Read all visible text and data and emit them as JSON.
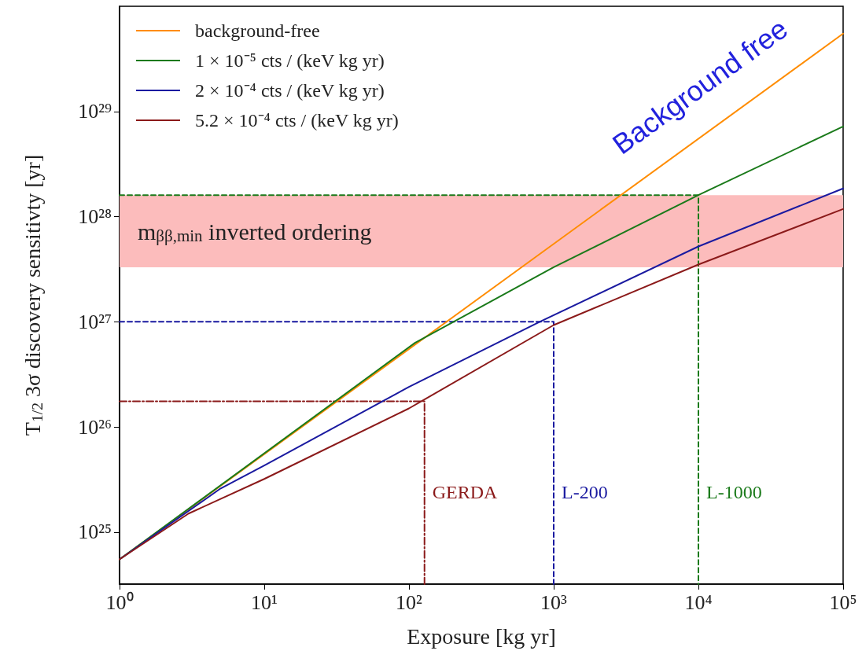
{
  "chart_data": {
    "type": "line",
    "xlabel": "Exposure [kg yr]",
    "ylabel": "T$_{1/2}$ 3σ discovery sensitivty [yr]",
    "log": "xy",
    "legend": "top left",
    "marker": "none",
    "xlim": [
      1,
      100000
    ],
    "ylim": [
      3.2e+24,
      1e+30
    ],
    "xticks": [
      {
        "value": 1,
        "label": "10⁰"
      },
      {
        "value": 10,
        "label": "10¹"
      },
      {
        "value": 100,
        "label": "10²"
      },
      {
        "value": 1000,
        "label": "10³"
      },
      {
        "value": 10000,
        "label": "10⁴"
      },
      {
        "value": 100000,
        "label": "10⁵"
      }
    ],
    "yticks": [
      {
        "value": 1e+25,
        "label": "10²⁵"
      },
      {
        "value": 1e+26,
        "label": "10²⁶"
      },
      {
        "value": 1e+27,
        "label": "10²⁷"
      },
      {
        "value": 1e+28,
        "label": "10²⁸"
      },
      {
        "value": 1e+29,
        "label": "10²⁹"
      }
    ],
    "series": [
      {
        "name": "background-free",
        "color": "#ff8c00",
        "x": [
          1,
          100000
        ],
        "values": [
          5.5e+24,
          5.5e+29
        ]
      },
      {
        "name": "1 × 10⁻⁵ cts / (keV kg yr)",
        "color": "#1a7a1a",
        "x": [
          1,
          110,
          1000,
          10000,
          100000
        ],
        "values": [
          5.5e+24,
          6.3e+26,
          3.3e+27,
          1.6e+28,
          7.2e+28
        ]
      },
      {
        "name": "2 × 10⁻⁴ cts / (keV kg yr)",
        "color": "#1a1aa0",
        "x": [
          1,
          5,
          10,
          100,
          800,
          10000,
          100000
        ],
        "values": [
          5.5e+24,
          2.6e+25,
          4.3e+25,
          2.4e+26,
          1e+27,
          5.2e+27,
          1.85e+28
        ]
      },
      {
        "name": "5.2 × 10⁻⁴ cts / (keV kg yr)",
        "color": "#8b1a1a",
        "x": [
          1,
          3,
          10,
          100,
          1000,
          10000,
          100000
        ],
        "values": [
          5.5e+24,
          1.5e+25,
          3.2e+25,
          1.5e+26,
          9.3e+26,
          3.5e+27,
          1.18e+28
        ]
      },
      {
        "color": "#8b1a1a",
        "line_style": "dashdot",
        "x": [
          1,
          128,
          128
        ],
        "values": [
          1.75e+26,
          1.75e+26,
          3.2e+24
        ]
      },
      {
        "color": "#1a1aa0",
        "line_style": "dashed",
        "x": [
          1,
          1000,
          1000
        ],
        "values": [
          1e+27,
          1e+27,
          3.2e+24
        ]
      },
      {
        "color": "#1a7a1a",
        "line_style": "dashed",
        "x": [
          1,
          10000,
          10000
        ],
        "values": [
          1.6e+28,
          1.6e+28,
          3.2e+24
        ]
      }
    ],
    "bands": [
      {
        "axis": "y",
        "from": 3.3e+27,
        "to": 1.6e+28,
        "label": "m$_{ββ,min}$ inverted ordering",
        "color": "#fcbcbc"
      }
    ],
    "annotations": [
      {
        "text": "GERDA",
        "x": 128,
        "y": 2.4e+25
      },
      {
        "text": "L-200",
        "x": 1000,
        "y": 2.4e+25
      },
      {
        "text": "L-1000",
        "x": 10000,
        "y": 2.4e+25
      },
      "Background free"
    ]
  }
}
